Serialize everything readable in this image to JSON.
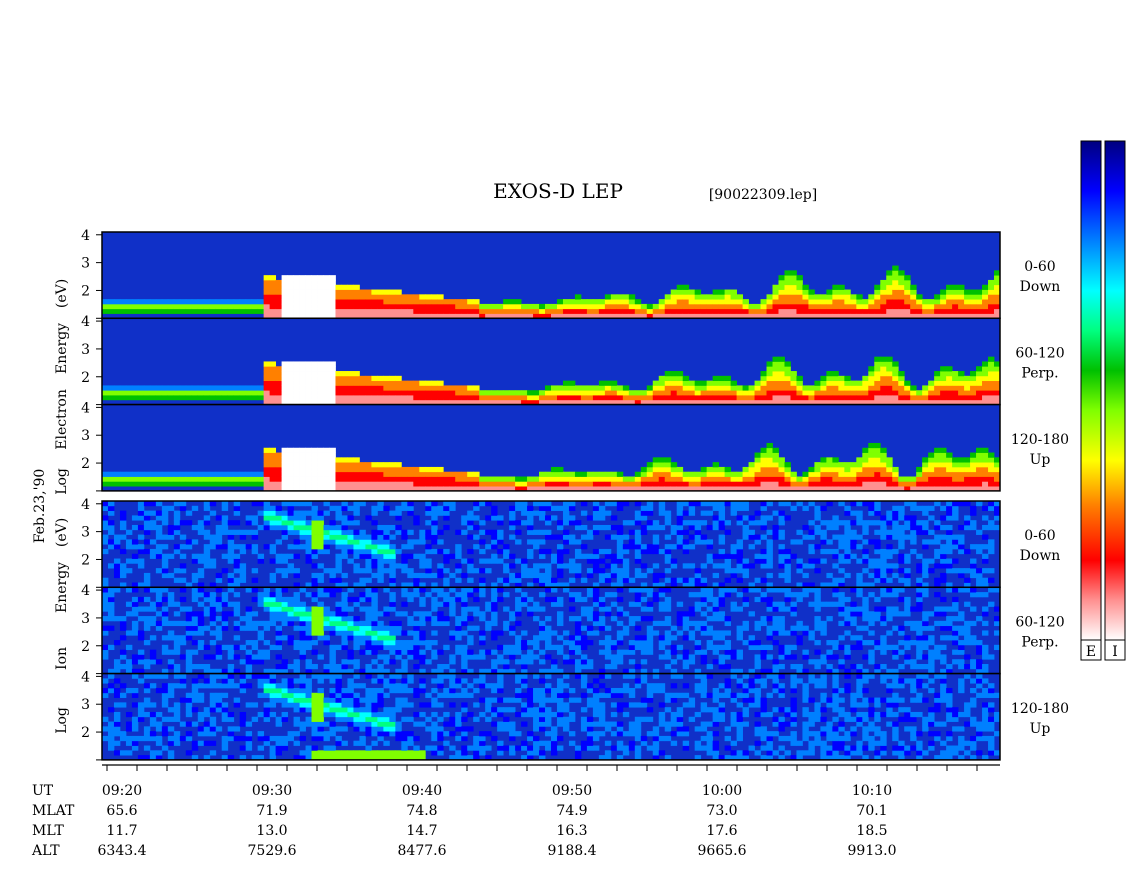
{
  "chart_data": {
    "type": "heatmap",
    "title": "EXOS-D LEP",
    "file_label": "[90022309.lep]",
    "date_label": "Feb.23,'90",
    "x_axis": {
      "time_ticks": [
        "09:20",
        "09:30",
        "09:40",
        "09:50",
        "10:00",
        "10:10"
      ],
      "row_labels": [
        "UT",
        "MLAT",
        "MLT",
        "ALT"
      ],
      "MLAT": [
        "65.6",
        "71.9",
        "74.8",
        "74.9",
        "73.0",
        "70.1"
      ],
      "MLT": [
        "11.7",
        "13.0",
        "14.7",
        "16.3",
        "17.6",
        "18.5"
      ],
      "ALT": [
        "6343.4",
        "7529.6",
        "8477.6",
        "9188.4",
        "9665.6",
        "9913.0"
      ]
    },
    "y_ticks": [
      "2",
      "3",
      "4"
    ],
    "y_range_log_eV": [
      1.0,
      4.1
    ],
    "groups": [
      {
        "species": "Electron",
        "ylabel_words": [
          "Log",
          "Electron",
          "Energy",
          "(eV)"
        ],
        "panels": [
          {
            "pitch": "0-60",
            "dir": "Down"
          },
          {
            "pitch": "60-120",
            "dir": "Perp."
          },
          {
            "pitch": "120-180",
            "dir": "Up"
          }
        ]
      },
      {
        "species": "Ion",
        "ylabel_words": [
          "Log",
          "Ion",
          "Energy",
          "(eV)"
        ],
        "panels": [
          {
            "pitch": "0-60",
            "dir": "Down"
          },
          {
            "pitch": "60-120",
            "dir": "Perp."
          },
          {
            "pitch": "120-180",
            "dir": "Up"
          }
        ]
      }
    ],
    "colorbars": [
      {
        "label": "E"
      },
      {
        "label": "I"
      }
    ],
    "colormap": [
      "#ffffff",
      "#ff9090",
      "#ff0000",
      "#ff8000",
      "#ffff00",
      "#80ff00",
      "#00c000",
      "#00ff80",
      "#00ffff",
      "#0080ff",
      "#0000ff",
      "#000080"
    ]
  }
}
